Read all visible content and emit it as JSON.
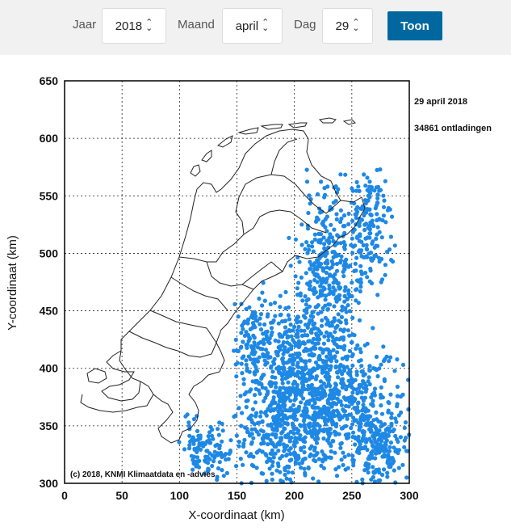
{
  "form": {
    "year_label": "Jaar",
    "year_value": "2018",
    "month_label": "Maand",
    "month_value": "april",
    "day_label": "Dag",
    "day_value": "29",
    "submit_label": "Toon"
  },
  "colors": {
    "accent": "#00689e",
    "strike": "#1e88e5",
    "outline": "#222222"
  },
  "chart_data": {
    "type": "scatter",
    "title": "",
    "date_text": "29 april 2018",
    "count_text": "34861 ontladingen",
    "copyright": "(c) 2018, KNMI Klimaatdata en -advies",
    "xlabel": "X-coordinaat (km)",
    "ylabel": "Y-coordinaat (km)",
    "xlim": [
      0,
      300
    ],
    "ylim": [
      300,
      650
    ],
    "xticks": [
      0,
      50,
      100,
      150,
      200,
      250,
      300
    ],
    "yticks": [
      300,
      350,
      400,
      450,
      500,
      550,
      600,
      650
    ],
    "xtick_labels": [
      "0",
      "50",
      "100",
      "150",
      "200",
      "250",
      "300"
    ],
    "ytick_labels": [
      "300",
      "350",
      "400",
      "450",
      "500",
      "550",
      "600",
      "650"
    ],
    "grid": true,
    "series": [
      {
        "clusters": [
          {
            "x": 230,
            "y": 480,
            "rx": 22,
            "ry": 60
          },
          {
            "x": 265,
            "y": 520,
            "rx": 15,
            "ry": 45
          },
          {
            "x": 200,
            "y": 400,
            "rx": 35,
            "ry": 55
          },
          {
            "x": 240,
            "y": 370,
            "rx": 45,
            "ry": 50
          },
          {
            "x": 185,
            "y": 340,
            "rx": 30,
            "ry": 35
          },
          {
            "x": 275,
            "y": 330,
            "rx": 20,
            "ry": 30
          },
          {
            "x": 125,
            "y": 330,
            "rx": 18,
            "ry": 25
          },
          {
            "x": 165,
            "y": 420,
            "rx": 12,
            "ry": 30
          }
        ]
      }
    ]
  }
}
